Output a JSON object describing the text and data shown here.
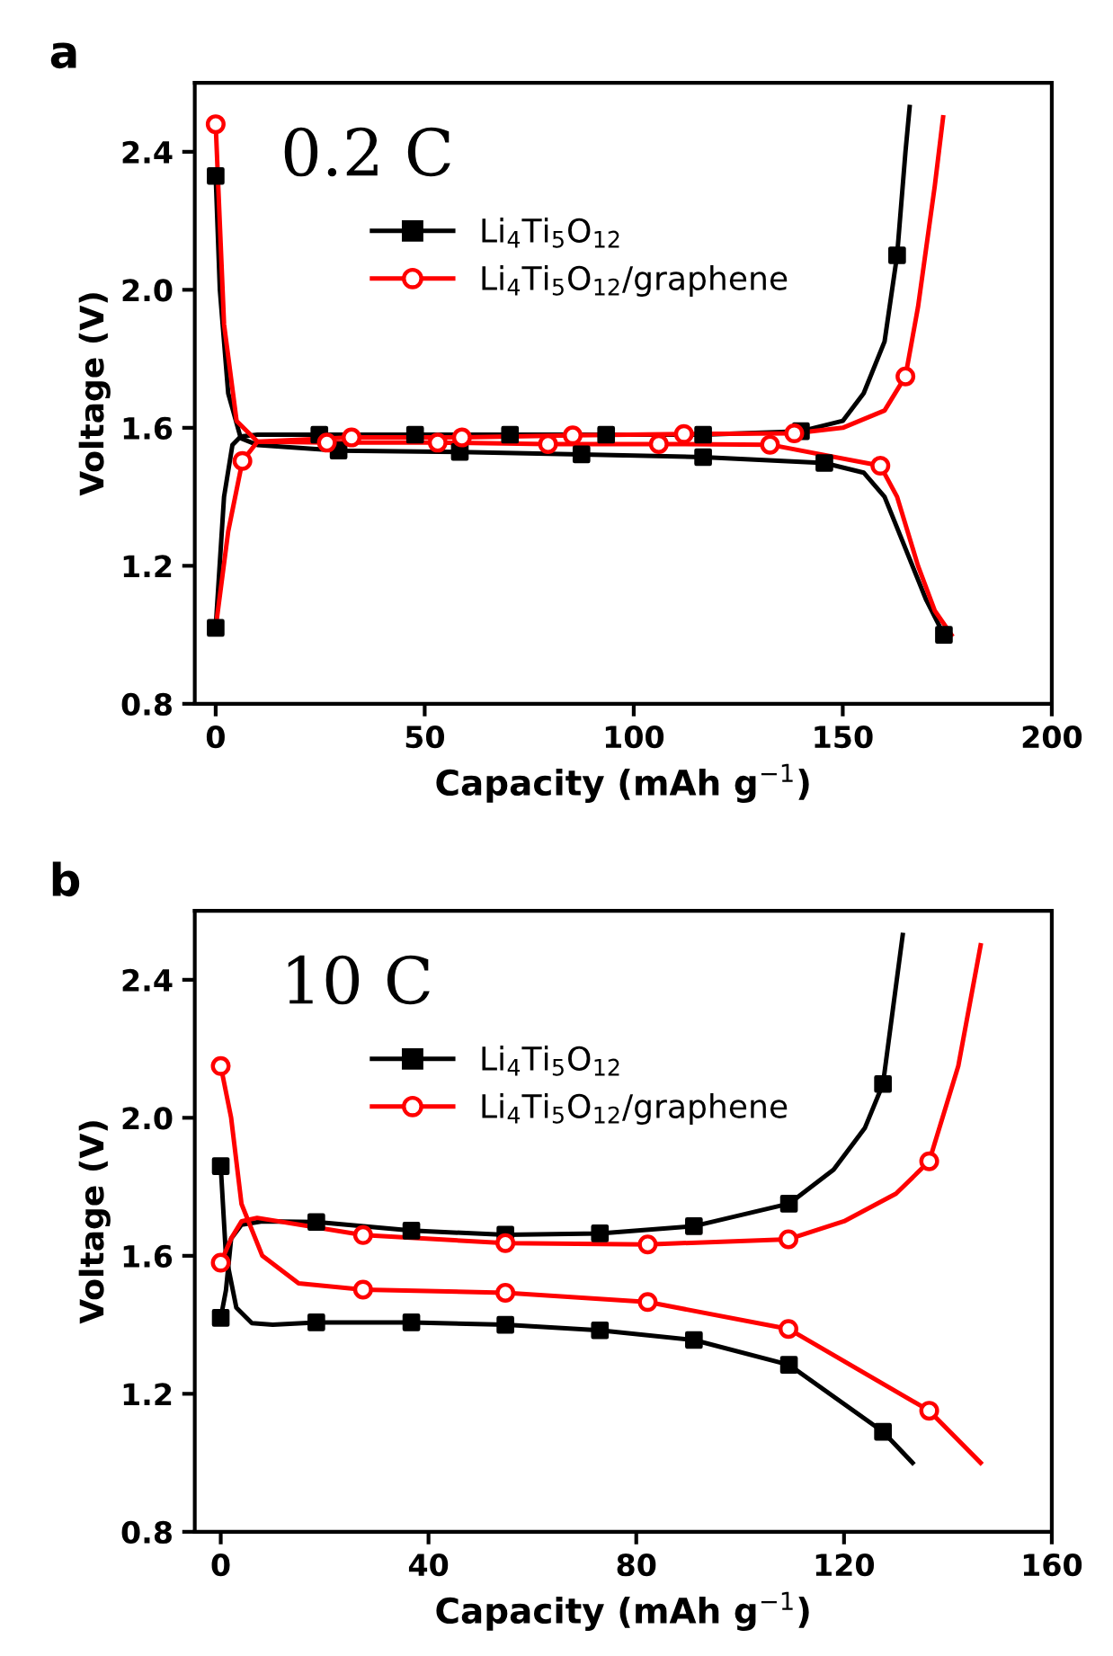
{
  "chart_data": [
    {
      "type": "line",
      "title": "a",
      "xlabel": "Capacity (mAh g$^{−1}$)",
      "ylabel": "Voltage (V)",
      "annotations": [
        "0.2 C"
      ],
      "xlim": [
        -5,
        200
      ],
      "xticks": [
        0,
        50,
        100,
        150,
        200
      ],
      "ylim": [
        0.8,
        2.6
      ],
      "yticks": [
        0.8,
        1.2,
        1.6,
        {
          "value": 2.0,
          "label": "2.0"
        },
        2.4
      ],
      "grid": false,
      "legend": "top",
      "series": [
        {
          "type": "line",
          "color": "#000000",
          "marker": "none",
          "x": [
            0,
            2,
            4,
            6,
            10,
            24.8,
            47.7,
            70.4,
            93.4,
            116.6,
            140,
            150,
            155,
            160,
            163,
            165,
            166
          ],
          "values": [
            1.02,
            1.4,
            1.55,
            1.575,
            1.58,
            1.58,
            1.58,
            1.58,
            1.58,
            1.58,
            1.59,
            1.62,
            1.7,
            1.85,
            2.1,
            2.4,
            2.53
          ]
        },
        {
          "type": "line",
          "color": "#000000",
          "marker": "none",
          "x": [
            0,
            1,
            3,
            6,
            10,
            29.4,
            58.4,
            87.5,
            116.6,
            145.6,
            155,
            160,
            165,
            170,
            174.2
          ],
          "values": [
            2.33,
            2.0,
            1.7,
            1.57,
            1.55,
            1.534,
            1.53,
            1.523,
            1.515,
            1.498,
            1.47,
            1.4,
            1.25,
            1.1,
            1.0
          ]
        },
        {
          "type": "line",
          "color": "#ff0000",
          "marker": "none",
          "x": [
            0,
            3,
            6.4,
            10,
            32.5,
            58.9,
            85.4,
            112,
            138.4,
            150,
            160,
            165,
            168,
            172,
            174
          ],
          "values": [
            1.02,
            1.3,
            1.504,
            1.56,
            1.572,
            1.572,
            1.578,
            1.582,
            1.584,
            1.6,
            1.65,
            1.749,
            1.95,
            2.3,
            2.5
          ]
        },
        {
          "type": "line",
          "color": "#ff0000",
          "marker": "none",
          "x": [
            0,
            2,
            5,
            10,
            26.6,
            53.1,
            79.5,
            106,
            132.6,
            159,
            163,
            168,
            172,
            176
          ],
          "values": [
            2.48,
            1.9,
            1.62,
            1.56,
            1.557,
            1.557,
            1.553,
            1.553,
            1.551,
            1.49,
            1.4,
            1.2,
            1.07,
            1.0
          ]
        },
        {
          "type": "scatter",
          "name": "Li$_{4}$Ti$_{5}$O$_{12}$",
          "color": "#000000",
          "marker": "square",
          "line_style": "solid",
          "x": [
            0,
            24.8,
            47.7,
            70.4,
            93.4,
            116.6,
            140,
            163,
            0,
            29.4,
            58.4,
            87.5,
            116.6,
            145.6,
            174.2
          ],
          "values": [
            1.02,
            1.58,
            1.58,
            1.58,
            1.58,
            1.58,
            1.59,
            2.1,
            2.33,
            1.534,
            1.53,
            1.523,
            1.515,
            1.498,
            1.0
          ]
        },
        {
          "type": "scatter",
          "name": "Li$_{4}$Ti$_{5}$O$_{12}$/graphene",
          "color": "#ff0000",
          "marker": "circle",
          "line_style": "solid",
          "x": [
            6.4,
            32.5,
            58.9,
            85.4,
            112,
            138.4,
            165,
            0,
            26.6,
            53.1,
            79.5,
            106,
            132.6,
            159
          ],
          "values": [
            1.504,
            1.572,
            1.572,
            1.578,
            1.582,
            1.584,
            1.749,
            2.48,
            1.557,
            1.557,
            1.553,
            1.553,
            1.551,
            1.49
          ]
        }
      ]
    },
    {
      "type": "line",
      "title": "b",
      "xlabel": "Capacity (mAh g$^{−1}$)",
      "ylabel": "Voltage (V)",
      "annotations": [
        "10 C"
      ],
      "xlim": [
        -5,
        160
      ],
      "xticks": [
        0,
        40,
        80,
        120,
        160
      ],
      "ylim": [
        0.8,
        2.6
      ],
      "yticks": [
        0.8,
        1.2,
        1.6,
        {
          "value": 2.0,
          "label": "2.0"
        },
        2.4
      ],
      "grid": false,
      "legend": "top",
      "series": [
        {
          "type": "line",
          "color": "#000000",
          "marker": "none",
          "x": [
            0,
            1,
            2,
            4,
            8,
            18.4,
            36.7,
            54.8,
            73,
            91.1,
            109.4,
            118,
            124,
            127.5,
            131.3
          ],
          "values": [
            1.42,
            1.5,
            1.65,
            1.69,
            1.7,
            1.698,
            1.673,
            1.661,
            1.665,
            1.686,
            1.751,
            1.85,
            1.97,
            2.098,
            2.53
          ]
        },
        {
          "type": "line",
          "color": "#000000",
          "marker": "none",
          "x": [
            0,
            1,
            3,
            6,
            10,
            18.4,
            36.7,
            54.8,
            73,
            91.1,
            109.4,
            127.5,
            133.2
          ],
          "values": [
            1.86,
            1.6,
            1.45,
            1.405,
            1.4,
            1.407,
            1.407,
            1.4,
            1.384,
            1.356,
            1.284,
            1.09,
            1.0
          ]
        },
        {
          "type": "line",
          "color": "#ff0000",
          "marker": "none",
          "x": [
            0,
            2,
            4,
            7,
            27.4,
            54.8,
            82.2,
            109.3,
            120,
            130,
            136.4,
            142,
            146.3
          ],
          "values": [
            1.58,
            1.65,
            1.7,
            1.71,
            1.66,
            1.637,
            1.633,
            1.648,
            1.7,
            1.78,
            1.874,
            2.15,
            2.5
          ]
        },
        {
          "type": "line",
          "color": "#ff0000",
          "marker": "none",
          "x": [
            0,
            2,
            4,
            8,
            15,
            27.4,
            54.8,
            82.2,
            109.3,
            136.4,
            146.3
          ],
          "values": [
            2.15,
            2.0,
            1.75,
            1.6,
            1.52,
            1.502,
            1.493,
            1.466,
            1.388,
            1.151,
            1.0
          ]
        },
        {
          "type": "scatter",
          "name": "Li$_{4}$Ti$_{5}$O$_{12}$",
          "color": "#000000",
          "marker": "square",
          "line_style": "solid",
          "x": [
            0,
            18.4,
            36.7,
            54.8,
            73,
            91.1,
            109.4,
            127.5,
            0,
            18.4,
            36.7,
            54.8,
            73,
            91.1,
            109.4,
            127.5
          ],
          "values": [
            1.42,
            1.698,
            1.673,
            1.661,
            1.665,
            1.686,
            1.751,
            2.098,
            1.86,
            1.407,
            1.407,
            1.4,
            1.384,
            1.356,
            1.284,
            1.09
          ]
        },
        {
          "type": "scatter",
          "name": "Li$_{4}$Ti$_{5}$O$_{12}$/graphene",
          "color": "#ff0000",
          "marker": "circle",
          "line_style": "solid",
          "x": [
            0,
            27.4,
            54.8,
            82.2,
            109.3,
            136.4,
            0,
            27.4,
            54.8,
            82.2,
            109.3,
            136.4
          ],
          "values": [
            1.58,
            1.66,
            1.637,
            1.633,
            1.648,
            1.874,
            2.15,
            1.502,
            1.493,
            1.466,
            1.388,
            1.151
          ]
        }
      ]
    }
  ]
}
